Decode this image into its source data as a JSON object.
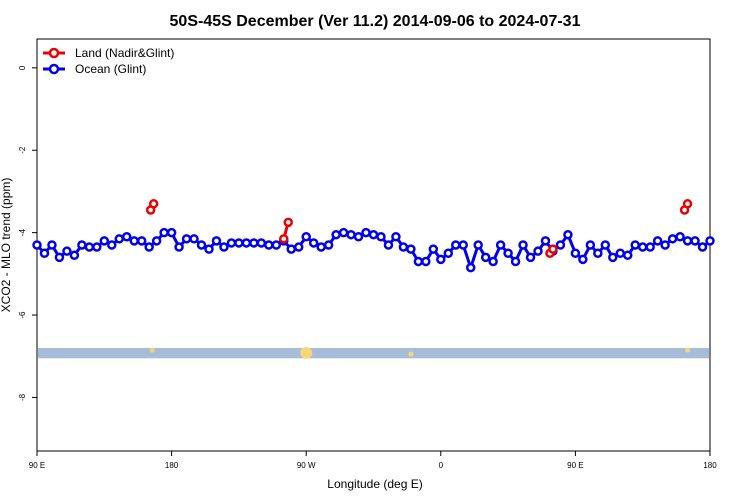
{
  "chart_data": {
    "type": "line",
    "title": "50S-45S December (Ver 11.2)   2014-09-06 to 2024-07-31",
    "xlabel": "Longitude (deg E)",
    "ylabel": "XCO2 - MLO trend (ppm)",
    "x_ticks": [
      {
        "value": 90,
        "label": "90 E"
      },
      {
        "value": 180,
        "label": "180"
      },
      {
        "value": 270,
        "label": "90 W"
      },
      {
        "value": 360,
        "label": "0"
      },
      {
        "value": 450,
        "label": "90 E"
      },
      {
        "value": 540,
        "label": "180"
      }
    ],
    "y_ticks": [
      {
        "value": 0,
        "label": "0"
      },
      {
        "value": -2,
        "label": "-2"
      },
      {
        "value": -4,
        "label": "-4"
      },
      {
        "value": -6,
        "label": "-6"
      },
      {
        "value": -8,
        "label": "-8"
      }
    ],
    "xlim": [
      90,
      540
    ],
    "ylim": [
      -9.3,
      0.7
    ],
    "grid": false,
    "legend_position": "top-left",
    "series": [
      {
        "name": "Land (Nadir&Glint)",
        "color": "#ee0000",
        "segments": [
          [
            [
              166,
              -3.45
            ],
            [
              168,
              -3.3
            ]
          ],
          [
            [
              255,
              -4.15
            ],
            [
              258,
              -3.75
            ]
          ],
          [
            [
              523,
              -3.45
            ],
            [
              525,
              -3.3
            ]
          ],
          [
            [
              433,
              -4.5
            ],
            [
              435,
              -4.4
            ]
          ]
        ]
      },
      {
        "name": "Ocean (Glint)",
        "color": "#0000ee",
        "x": [
          90,
          95,
          100,
          105,
          110,
          115,
          120,
          125,
          130,
          135,
          140,
          145,
          150,
          155,
          160,
          165,
          170,
          175,
          180,
          185,
          190,
          195,
          200,
          205,
          210,
          215,
          220,
          225,
          230,
          235,
          240,
          245,
          250,
          255,
          260,
          265,
          270,
          275,
          280,
          285,
          290,
          295,
          300,
          305,
          310,
          315,
          320,
          325,
          330,
          335,
          340,
          345,
          350,
          355,
          360,
          365,
          370,
          375,
          380,
          385,
          390,
          395,
          400,
          405,
          410,
          415,
          420,
          425,
          430,
          435,
          440,
          445,
          450,
          455,
          460,
          465,
          470,
          475,
          480,
          485,
          490,
          495,
          500,
          505,
          510,
          515,
          520,
          525,
          530,
          535,
          540
        ],
        "y": [
          -4.3,
          -4.5,
          -4.3,
          -4.6,
          -4.45,
          -4.55,
          -4.3,
          -4.35,
          -4.35,
          -4.2,
          -4.3,
          -4.15,
          -4.1,
          -4.2,
          -4.2,
          -4.35,
          -4.2,
          -4.0,
          -4.0,
          -4.35,
          -4.15,
          -4.15,
          -4.3,
          -4.4,
          -4.2,
          -4.35,
          -4.25,
          -4.25,
          -4.25,
          -4.25,
          -4.25,
          -4.3,
          -4.3,
          -4.2,
          -4.4,
          -4.35,
          -4.1,
          -4.25,
          -4.35,
          -4.3,
          -4.05,
          -4.0,
          -4.05,
          -4.1,
          -4.0,
          -4.05,
          -4.1,
          -4.3,
          -4.1,
          -4.35,
          -4.4,
          -4.7,
          -4.7,
          -4.4,
          -4.65,
          -4.5,
          -4.3,
          -4.3,
          -4.85,
          -4.3,
          -4.6,
          -4.7,
          -4.3,
          -4.5,
          -4.7,
          -4.3,
          -4.6,
          -4.45,
          -4.2,
          -4.45,
          -4.3,
          -4.05,
          -4.5,
          -4.65,
          -4.3,
          -4.5,
          -4.3,
          -4.6,
          -4.5,
          -4.55,
          -4.3,
          -4.35,
          -4.35,
          -4.2,
          -4.3,
          -4.15,
          -4.1,
          -4.2,
          -4.2,
          -4.35,
          -4.2
        ]
      }
    ],
    "land_band": {
      "y_min": -7.05,
      "y_max": -6.8,
      "color": "#a7bcd9"
    },
    "land_markers": [
      {
        "x": 167,
        "y": -6.85,
        "color": "#f5d77a"
      },
      {
        "x": 270,
        "y": -6.92,
        "color": "#f5d77a"
      },
      {
        "x": 525,
        "y": -6.85,
        "color": "#f5d77a"
      },
      {
        "x": 340,
        "y": -6.95,
        "color": "#f5d77a"
      }
    ]
  }
}
